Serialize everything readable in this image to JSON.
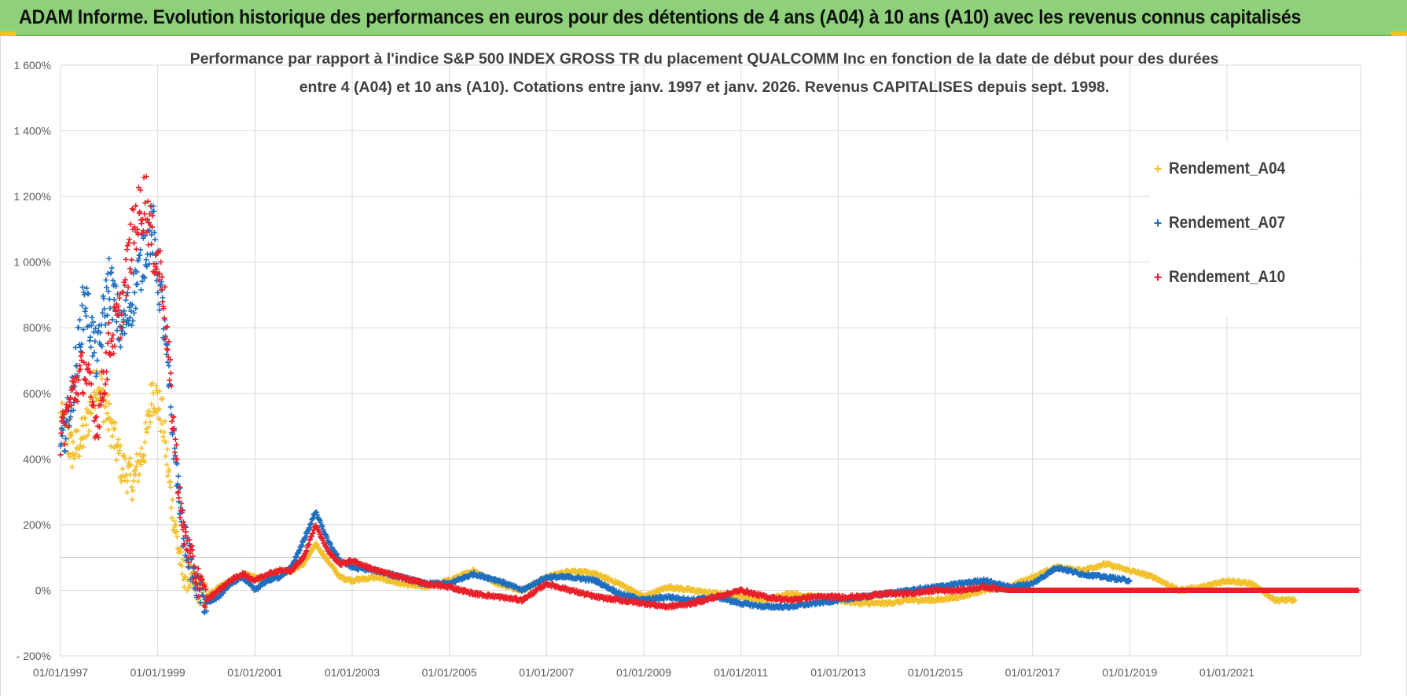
{
  "header": {
    "title": "ADAM Informe. Evolution historique des performances en euros pour des détentions de 4 ans (A04) à 10 ans (A10) avec les revenus connus capitalisés"
  },
  "chart_data": {
    "type": "scatter",
    "title_line1": "Performance par rapport à l'indice S&P 500 INDEX GROSS TR  du placement QUALCOMM Inc en fonction de la date de début pour des durées",
    "title_line2": "entre 4 (A04) et 10 ans (A10).  Cotations entre janv. 1997 et janv. 2026. Revenus CAPITALISES  depuis sept. 1998.",
    "xlabel": "",
    "ylabel": "",
    "xlim": [
      1997.0,
      2023.75
    ],
    "ylim": [
      -200,
      1600
    ],
    "x_ticks": [
      "01/01/1997",
      "01/01/1999",
      "01/01/2001",
      "01/01/2003",
      "01/01/2005",
      "01/01/2007",
      "01/01/2009",
      "01/01/2011",
      "01/01/2013",
      "01/01/2015",
      "01/01/2017",
      "01/01/2019",
      "01/01/2021"
    ],
    "x_tick_values": [
      1997,
      1999,
      2001,
      2003,
      2005,
      2007,
      2009,
      2011,
      2013,
      2015,
      2017,
      2019,
      2021
    ],
    "y_ticks": [
      "- 200%",
      "0%",
      "200%",
      "400%",
      "600%",
      "800%",
      "1 000%",
      "1 200%",
      "1 400%",
      "1 600%"
    ],
    "y_tick_values": [
      -200,
      0,
      200,
      400,
      600,
      800,
      1000,
      1200,
      1400,
      1600
    ],
    "legend_position": "top-right",
    "grid": true,
    "series": [
      {
        "name": "Rendement_A04",
        "color": "#f2c12e",
        "marker": "+",
        "x": [
          1997.0,
          1997.25,
          1997.5,
          1997.75,
          1998.0,
          1998.25,
          1998.5,
          1998.75,
          1998.9,
          1999.1,
          1999.3,
          1999.5,
          1999.75,
          2000.0,
          2000.25,
          2000.5,
          2000.75,
          2001.0,
          2001.25,
          2001.5,
          2001.75,
          2002.0,
          2002.25,
          2002.5,
          2002.75,
          2003.0,
          2003.5,
          2004.0,
          2004.5,
          2005.0,
          2005.5,
          2006.0,
          2006.5,
          2007.0,
          2007.5,
          2008.0,
          2008.5,
          2009.0,
          2009.5,
          2010.0,
          2010.5,
          2011.0,
          2011.5,
          2012.0,
          2012.5,
          2013.0,
          2013.5,
          2014.0,
          2014.5,
          2015.0,
          2015.5,
          2016.0,
          2016.5,
          2017.0,
          2017.5,
          2018.0,
          2018.5,
          2019.0,
          2019.5,
          2020.0,
          2020.5,
          2021.0,
          2021.5,
          2022.0,
          2022.4
        ],
        "y": [
          520,
          420,
          480,
          650,
          520,
          380,
          330,
          450,
          620,
          520,
          250,
          60,
          20,
          -20,
          10,
          30,
          50,
          40,
          30,
          50,
          60,
          80,
          140,
          90,
          40,
          30,
          40,
          20,
          10,
          30,
          60,
          20,
          0,
          40,
          60,
          50,
          20,
          -20,
          10,
          0,
          -10,
          -20,
          -30,
          -10,
          -20,
          -30,
          -40,
          -40,
          -30,
          -30,
          -20,
          0,
          10,
          40,
          70,
          60,
          80,
          60,
          40,
          0,
          10,
          30,
          20,
          -30,
          -30
        ]
      },
      {
        "name": "Rendement_A07",
        "color": "#1f6fc0",
        "marker": "+",
        "x": [
          1997.0,
          1997.25,
          1997.5,
          1997.75,
          1998.0,
          1998.25,
          1998.5,
          1998.75,
          1998.9,
          1999.1,
          1999.3,
          1999.5,
          1999.75,
          2000.0,
          2000.25,
          2000.5,
          2000.75,
          2001.0,
          2001.25,
          2001.5,
          2001.75,
          2002.0,
          2002.25,
          2002.5,
          2002.75,
          2003.0,
          2003.5,
          2004.0,
          2004.5,
          2005.0,
          2005.5,
          2006.0,
          2006.5,
          2007.0,
          2007.5,
          2008.0,
          2008.5,
          2009.0,
          2009.5,
          2010.0,
          2010.5,
          2011.0,
          2011.5,
          2012.0,
          2012.5,
          2013.0,
          2013.5,
          2014.0,
          2014.5,
          2015.0,
          2015.5,
          2016.0,
          2016.5,
          2017.0,
          2017.5,
          2018.0,
          2018.5,
          2019.0
        ],
        "y": [
          420,
          600,
          900,
          700,
          950,
          780,
          900,
          1050,
          1100,
          850,
          500,
          200,
          30,
          -40,
          -20,
          20,
          40,
          0,
          30,
          40,
          70,
          150,
          240,
          150,
          90,
          70,
          60,
          40,
          20,
          20,
          50,
          30,
          0,
          40,
          40,
          30,
          -10,
          -30,
          -20,
          -30,
          -20,
          -40,
          -50,
          -50,
          -40,
          -30,
          -20,
          -10,
          0,
          10,
          20,
          30,
          10,
          20,
          70,
          50,
          40,
          30
        ]
      },
      {
        "name": "Rendement_A10",
        "color": "#e8202a",
        "marker": "+",
        "x": [
          1997.0,
          1997.25,
          1997.5,
          1997.75,
          1998.0,
          1998.25,
          1998.5,
          1998.75,
          1998.9,
          1999.1,
          1999.3,
          1999.5,
          1999.75,
          2000.0,
          2000.25,
          2000.5,
          2000.75,
          2001.0,
          2001.25,
          2001.5,
          2001.75,
          2002.0,
          2002.25,
          2002.5,
          2002.75,
          2003.0,
          2003.5,
          2004.0,
          2004.5,
          2005.0,
          2005.5,
          2006.0,
          2006.5,
          2007.0,
          2007.5,
          2008.0,
          2008.5,
          2009.0,
          2009.5,
          2010.0,
          2010.5,
          2011.0,
          2011.5,
          2012.0,
          2012.5,
          2013.0,
          2013.5,
          2014.0,
          2014.5,
          2015.0,
          2015.5,
          2016.0,
          2016.5,
          2017.0,
          2018.0,
          2019.0,
          2020.0,
          2021.0,
          2022.0,
          2023.0,
          2023.7
        ],
        "y": [
          460,
          600,
          680,
          500,
          750,
          850,
          1100,
          1200,
          1050,
          950,
          550,
          200,
          60,
          -30,
          0,
          30,
          50,
          30,
          50,
          60,
          60,
          100,
          200,
          120,
          80,
          90,
          60,
          40,
          20,
          10,
          -10,
          -20,
          -30,
          20,
          0,
          -20,
          -30,
          -40,
          -50,
          -40,
          -20,
          0,
          -20,
          -30,
          -20,
          -20,
          -20,
          -10,
          -10,
          0,
          0,
          10,
          0,
          0,
          0,
          0,
          0,
          0,
          0,
          0,
          0
        ]
      }
    ]
  }
}
